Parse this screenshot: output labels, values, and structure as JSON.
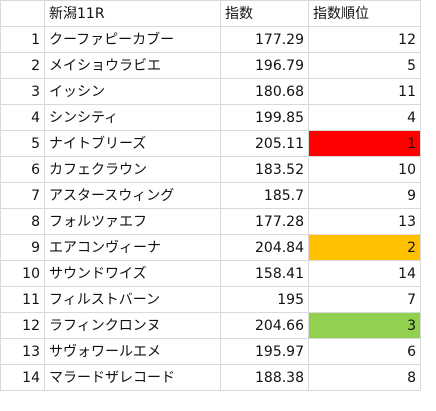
{
  "header": {
    "race": "新潟11R",
    "index": "指数",
    "rank": "指数順位"
  },
  "colors": {
    "rank1": "#ff0000",
    "rank2": "#ffc000",
    "rank3": "#92d050"
  },
  "rows": [
    {
      "no": "1",
      "name": "クーファピーカブー",
      "index": "177.29",
      "rank": "12",
      "highlight": ""
    },
    {
      "no": "2",
      "name": "メイショウラビエ",
      "index": "196.79",
      "rank": "5",
      "highlight": ""
    },
    {
      "no": "3",
      "name": "イッシン",
      "index": "180.68",
      "rank": "11",
      "highlight": ""
    },
    {
      "no": "4",
      "name": "シンシティ",
      "index": "199.85",
      "rank": "4",
      "highlight": ""
    },
    {
      "no": "5",
      "name": "ナイトブリーズ",
      "index": "205.11",
      "rank": "1",
      "highlight": "rank1"
    },
    {
      "no": "6",
      "name": "カフェクラウン",
      "index": "183.52",
      "rank": "10",
      "highlight": ""
    },
    {
      "no": "7",
      "name": "アスタースウィング",
      "index": "185.7",
      "rank": "9",
      "highlight": ""
    },
    {
      "no": "8",
      "name": "フォルツァエフ",
      "index": "177.28",
      "rank": "13",
      "highlight": ""
    },
    {
      "no": "9",
      "name": "エアコンヴィーナ",
      "index": "204.84",
      "rank": "2",
      "highlight": "rank2"
    },
    {
      "no": "10",
      "name": "サウンドワイズ",
      "index": "158.41",
      "rank": "14",
      "highlight": ""
    },
    {
      "no": "11",
      "name": "フィルストバーン",
      "index": "195",
      "rank": "7",
      "highlight": ""
    },
    {
      "no": "12",
      "name": "ラフィンクロンヌ",
      "index": "204.66",
      "rank": "3",
      "highlight": "rank3"
    },
    {
      "no": "13",
      "name": "サヴォワールエメ",
      "index": "195.97",
      "rank": "6",
      "highlight": ""
    },
    {
      "no": "14",
      "name": "マラードザレコード",
      "index": "188.38",
      "rank": "8",
      "highlight": ""
    }
  ]
}
